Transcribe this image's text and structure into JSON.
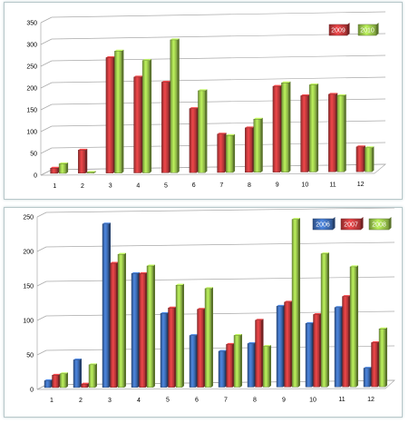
{
  "chart_data": [
    {
      "type": "bar",
      "categories": [
        "1",
        "2",
        "3",
        "4",
        "5",
        "6",
        "7",
        "8",
        "9",
        "10",
        "11",
        "12"
      ],
      "series": [
        {
          "name": "2009",
          "values": [
            12,
            53,
            265,
            220,
            208,
            147,
            88,
            102,
            197,
            175,
            178,
            57
          ]
        },
        {
          "name": "2010",
          "values": [
            22,
            2,
            280,
            258,
            305,
            188,
            85,
            122,
            205,
            200,
            175,
            55
          ]
        }
      ],
      "yticks": [
        "0",
        "50",
        "100",
        "150",
        "200",
        "250",
        "300",
        "350"
      ],
      "ylim": [
        0,
        350
      ],
      "grid": true,
      "legend": "top-right"
    },
    {
      "type": "bar",
      "categories": [
        "1",
        "2",
        "3",
        "4",
        "5",
        "6",
        "7",
        "8",
        "9",
        "10",
        "11",
        "12"
      ],
      "series": [
        {
          "name": "2006",
          "values": [
            10,
            40,
            237,
            165,
            107,
            75,
            52,
            63,
            117,
            92,
            115,
            27
          ]
        },
        {
          "name": "2007",
          "values": [
            18,
            5,
            180,
            165,
            115,
            113,
            62,
            97,
            123,
            105,
            131,
            64
          ]
        },
        {
          "name": "2008",
          "values": [
            20,
            33,
            193,
            176,
            148,
            143,
            75,
            59,
            243,
            193,
            174,
            84
          ]
        }
      ],
      "yticks": [
        "0",
        "50",
        "100",
        "150",
        "200",
        "250"
      ],
      "ylim": [
        0,
        250
      ],
      "grid": true,
      "legend": "top-right"
    }
  ],
  "colors": {
    "2006": "#3d6bb3",
    "2007": "#c0393b",
    "2008": "#97c24a",
    "2009": "#c0393b",
    "2010": "#97c24a"
  }
}
